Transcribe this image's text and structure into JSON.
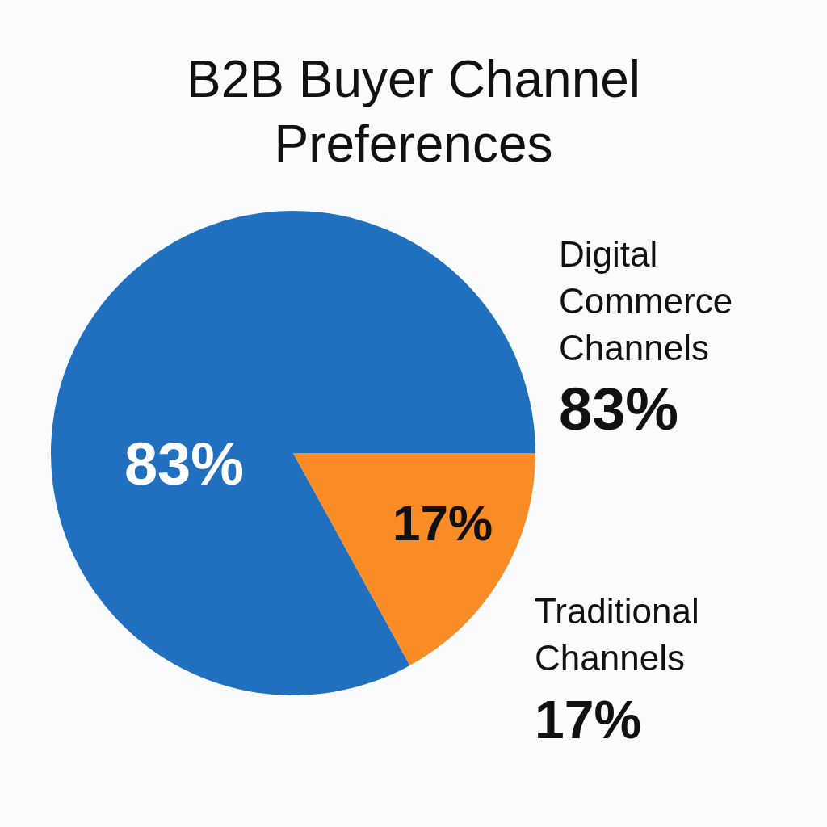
{
  "chart_data": {
    "type": "pie",
    "title": "B2B Buyer Channel Preferences",
    "categories": [
      "Digital Commerce Channels",
      "Traditional Channels"
    ],
    "values": [
      83,
      17
    ],
    "value_labels": [
      "83%",
      "17%"
    ],
    "colors": [
      "#2170c0",
      "#f98c25"
    ],
    "legend": false
  }
}
